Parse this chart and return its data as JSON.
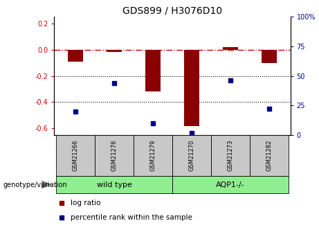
{
  "title": "GDS899 / H3076D10",
  "samples": [
    "GSM21266",
    "GSM21276",
    "GSM21279",
    "GSM21270",
    "GSM21273",
    "GSM21282"
  ],
  "log_ratio": [
    -0.09,
    -0.02,
    -0.32,
    -0.58,
    0.02,
    -0.1
  ],
  "percentile_rank": [
    20,
    44,
    10,
    2,
    46,
    22
  ],
  "ylim_left": [
    -0.65,
    0.25
  ],
  "ylim_right": [
    0,
    100
  ],
  "bar_color": "#8B0000",
  "dot_color": "#00008B",
  "hline_color": "#CC0000",
  "dotline_color": "black",
  "group_bg": "#C8C8C8",
  "green_color": "#90EE90",
  "left_yticks": [
    0.2,
    0.0,
    -0.2,
    -0.4,
    -0.6
  ],
  "right_yticks": [
    100,
    75,
    50,
    25,
    0
  ],
  "bar_width": 0.4,
  "legend_logratio": "log ratio",
  "legend_percentile": "percentile rank within the sample",
  "genotype_label": "genotype/variation",
  "group_spans": [
    {
      "label": "wild type",
      "start": 0,
      "end": 2
    },
    {
      "label": "AQP1-/-",
      "start": 3,
      "end": 5
    }
  ]
}
